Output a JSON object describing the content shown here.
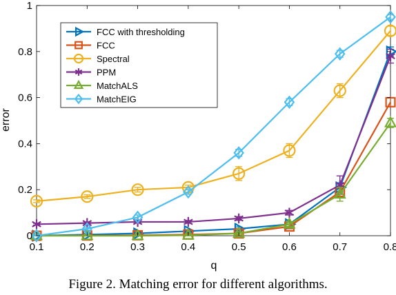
{
  "caption": "Figure 2. Matching error for different algorithms.",
  "chart_data": {
    "type": "line",
    "xlabel": "q",
    "ylabel": "error",
    "x": [
      0.1,
      0.2,
      0.3,
      0.4,
      0.5,
      0.6,
      0.7,
      0.8
    ],
    "x_tick_labels": [
      "0.1",
      "0.2",
      "0.3",
      "0.4",
      "0.5",
      "0.6",
      "0.7",
      "0.8"
    ],
    "y_ticks": [
      0,
      0.2,
      0.4,
      0.6,
      0.8,
      1
    ],
    "y_tick_labels": [
      "0",
      "0.2",
      "0.4",
      "0.6",
      "0.8",
      "1"
    ],
    "xlim": [
      0.1,
      0.8
    ],
    "ylim": [
      0,
      1
    ],
    "grid": false,
    "legend_position": "top-left",
    "series": [
      {
        "name": "FCC with thresholding",
        "color": "#0072BD",
        "marker": "triangle-right",
        "values": [
          0.0,
          0.005,
          0.01,
          0.02,
          0.03,
          0.05,
          0.21,
          0.8
        ],
        "errors": [
          0.003,
          0.004,
          0.005,
          0.006,
          0.008,
          0.01,
          0.02,
          0.02
        ]
      },
      {
        "name": "FCC",
        "color": "#D95319",
        "marker": "square",
        "values": [
          0.0,
          0.001,
          0.002,
          0.005,
          0.01,
          0.04,
          0.19,
          0.58
        ],
        "errors": [
          0.003,
          0.003,
          0.004,
          0.005,
          0.008,
          0.01,
          0.02,
          0.02
        ]
      },
      {
        "name": "Spectral",
        "color": "#EDB120",
        "marker": "circle",
        "values": [
          0.15,
          0.17,
          0.2,
          0.21,
          0.27,
          0.37,
          0.63,
          0.89
        ],
        "errors": [
          0.006,
          0.008,
          0.01,
          0.01,
          0.03,
          0.03,
          0.03,
          0.02
        ]
      },
      {
        "name": "PPM",
        "color": "#7E2F8E",
        "marker": "asterisk",
        "values": [
          0.05,
          0.055,
          0.06,
          0.06,
          0.075,
          0.1,
          0.22,
          0.78
        ],
        "errors": [
          0.004,
          0.005,
          0.005,
          0.006,
          0.008,
          0.01,
          0.04,
          0.03
        ]
      },
      {
        "name": "MatchALS",
        "color": "#77AC30",
        "marker": "triangle-up",
        "values": [
          0.0,
          0.0,
          0.0,
          0.002,
          0.01,
          0.05,
          0.18,
          0.49
        ],
        "errors": [
          0.003,
          0.003,
          0.003,
          0.004,
          0.006,
          0.01,
          0.03,
          0.02
        ]
      },
      {
        "name": "MatchEIG",
        "color": "#4DBEEE",
        "marker": "diamond",
        "values": [
          0.0,
          0.03,
          0.08,
          0.19,
          0.36,
          0.58,
          0.79,
          0.95
        ],
        "errors": [
          0.003,
          0.006,
          0.01,
          0.01,
          0.015,
          0.015,
          0.015,
          0.01
        ]
      }
    ]
  }
}
